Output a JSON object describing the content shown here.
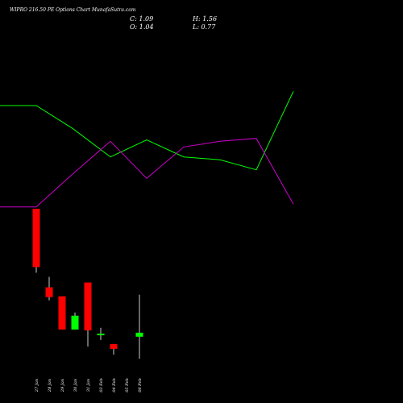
{
  "header": {
    "title": "WIPRO 216.50 PE Options Chart MunafaSutra.com",
    "close": "C: 1.09",
    "open": "O: 1.04",
    "high": "H: 1.56",
    "low": "L: 0.77"
  },
  "chart_data": {
    "type": "candlestick",
    "title": "WIPRO 216.50 PE Options Chart MunafaSutra.com",
    "categories": [
      "27 Jan",
      "28 Jan",
      "29 Jan",
      "30 Jan",
      "31 Jan",
      "03 Feb",
      "04 Feb",
      "05 Feb",
      "06 Feb"
    ],
    "x_tick_labels": [
      "27 Jan",
      "28 Jan",
      "29 Jan",
      "30 Jan",
      "31 Jan",
      "03 Feb",
      "04 Feb",
      "05 Feb",
      "06 Feb"
    ],
    "candles": [
      {
        "date": "27 Jan",
        "open": 2.62,
        "high": 2.62,
        "low": 1.83,
        "close": 1.9
      },
      {
        "date": "28 Jan",
        "open": 1.65,
        "high": 1.78,
        "low": 1.49,
        "close": 1.53
      },
      {
        "date": "29 Jan",
        "open": 1.54,
        "high": 1.54,
        "low": 1.13,
        "close": 1.13
      },
      {
        "date": "30 Jan",
        "open": 1.13,
        "high": 1.34,
        "low": 1.13,
        "close": 1.3
      },
      {
        "date": "31 Jan",
        "open": 1.71,
        "high": 1.71,
        "low": 0.92,
        "close": 1.12
      },
      {
        "date": "03 Feb",
        "open": 1.06,
        "high": 1.15,
        "low": 1.0,
        "close": 1.08
      },
      {
        "date": "04 Feb",
        "open": 0.95,
        "high": 0.95,
        "low": 0.82,
        "close": 0.89
      },
      {
        "date": "05 Feb",
        "open": null,
        "high": null,
        "low": null,
        "close": null
      },
      {
        "date": "06 Feb",
        "open": 1.04,
        "high": 1.56,
        "low": 0.77,
        "close": 1.09
      }
    ],
    "lines": [
      {
        "color": "#00ff00",
        "values": [
          0.74,
          0.74,
          0.58,
          0.38,
          0.5,
          0.38,
          0.36,
          0.29,
          0.84
        ]
      },
      {
        "color": "#cc00cc",
        "values": [
          0.03,
          0.03,
          0.26,
          0.49,
          0.23,
          0.45,
          0.49,
          0.51,
          0.05
        ]
      }
    ],
    "colors": {
      "up": "#00ff00",
      "down": "#ff0000",
      "background": "#000000"
    },
    "grid": false
  }
}
